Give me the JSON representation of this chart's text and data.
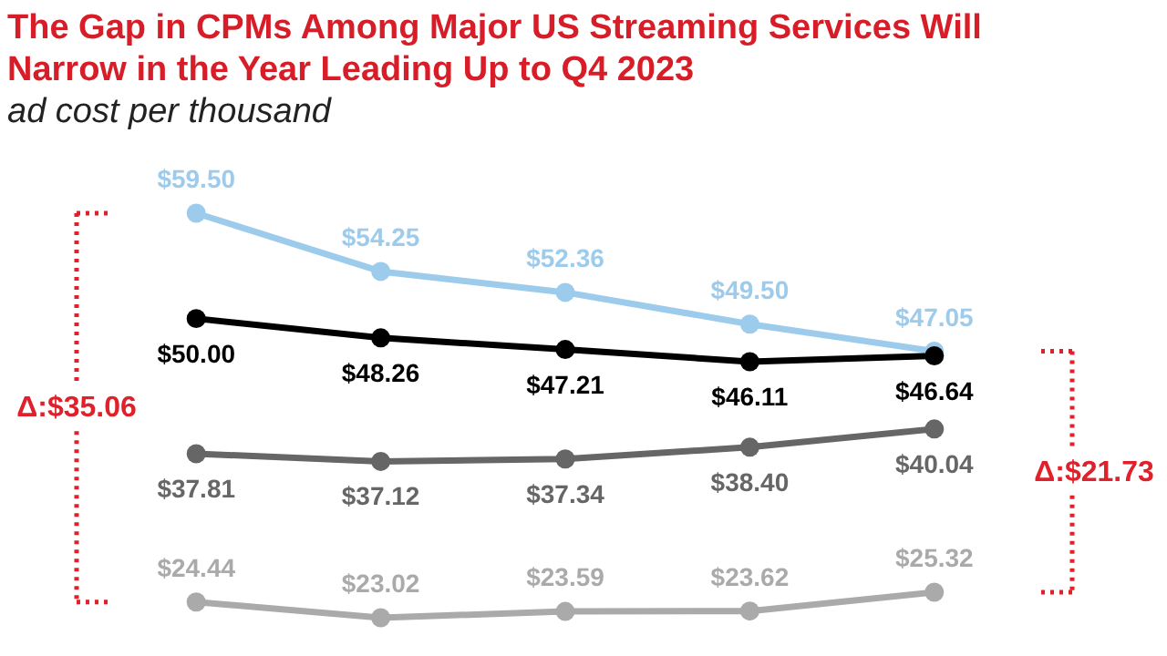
{
  "chart_data": {
    "type": "line",
    "title": "The Gap in CPMs Among Major US Streaming Services Will Narrow in the Year Leading Up to Q4 2023",
    "subtitle": "ad cost per thousand",
    "categories": [
      null,
      null,
      null,
      null,
      null
    ],
    "marker": "circle",
    "line_style": "solid",
    "series": [
      {
        "color": "#9dcbec",
        "values": [
          59.5,
          54.25,
          52.36,
          49.5,
          47.05
        ],
        "value_labels": [
          "$59.50",
          "$54.25",
          "$52.36",
          "$49.50",
          "$47.05"
        ]
      },
      {
        "color": "#000000",
        "values": [
          50.0,
          48.26,
          47.21,
          46.11,
          46.64
        ],
        "value_labels": [
          "$50.00",
          "$48.26",
          "$47.21",
          "$46.11",
          "$46.64"
        ]
      },
      {
        "color": "#666666",
        "values": [
          37.81,
          37.12,
          37.34,
          38.4,
          40.04
        ],
        "value_labels": [
          "$37.81",
          "$37.12",
          "$37.34",
          "$38.40",
          "$40.04"
        ]
      },
      {
        "color": "#aaaaaa",
        "values": [
          24.44,
          23.02,
          23.59,
          23.62,
          25.32
        ],
        "value_labels": [
          "$24.44",
          "$23.02",
          "$23.59",
          "$23.62",
          "$25.32"
        ]
      }
    ],
    "annotations": [
      "Δ:$35.06",
      "Δ:$21.73"
    ]
  }
}
